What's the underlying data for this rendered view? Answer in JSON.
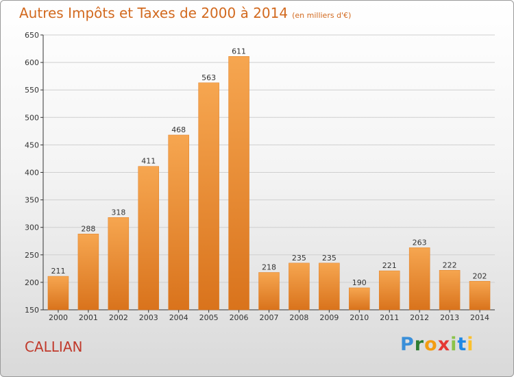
{
  "title": "Autres Impôts et Taxes de 2000 à 2014",
  "title_unit": "(en milliers d'€)",
  "place": "CALLIAN",
  "logo": {
    "letters": [
      "P",
      "r",
      "o",
      "x",
      "i",
      "t",
      "i"
    ],
    "colors": [
      "#3a8fd9",
      "#2e7d32",
      "#f39c12",
      "#e53935",
      "#8bc34a",
      "#1e88e5",
      "#fbc02d"
    ]
  },
  "colors": {
    "bar": "#f0892e",
    "bar_light": "#f6a650",
    "title": "#d2691e",
    "place": "#c0392b",
    "axis": "#333333",
    "grid": "#cfcfcf"
  },
  "chart_data": {
    "type": "bar",
    "categories": [
      "2000",
      "2001",
      "2002",
      "2003",
      "2004",
      "2005",
      "2006",
      "2007",
      "2008",
      "2009",
      "2010",
      "2011",
      "2012",
      "2013",
      "2014"
    ],
    "values": [
      211,
      288,
      318,
      411,
      468,
      563,
      611,
      218,
      235,
      235,
      190,
      221,
      263,
      222,
      202
    ],
    "ylim": [
      150,
      650
    ],
    "yticks": [
      150,
      200,
      250,
      300,
      350,
      400,
      450,
      500,
      550,
      600,
      650
    ],
    "grid": "horizontal"
  }
}
